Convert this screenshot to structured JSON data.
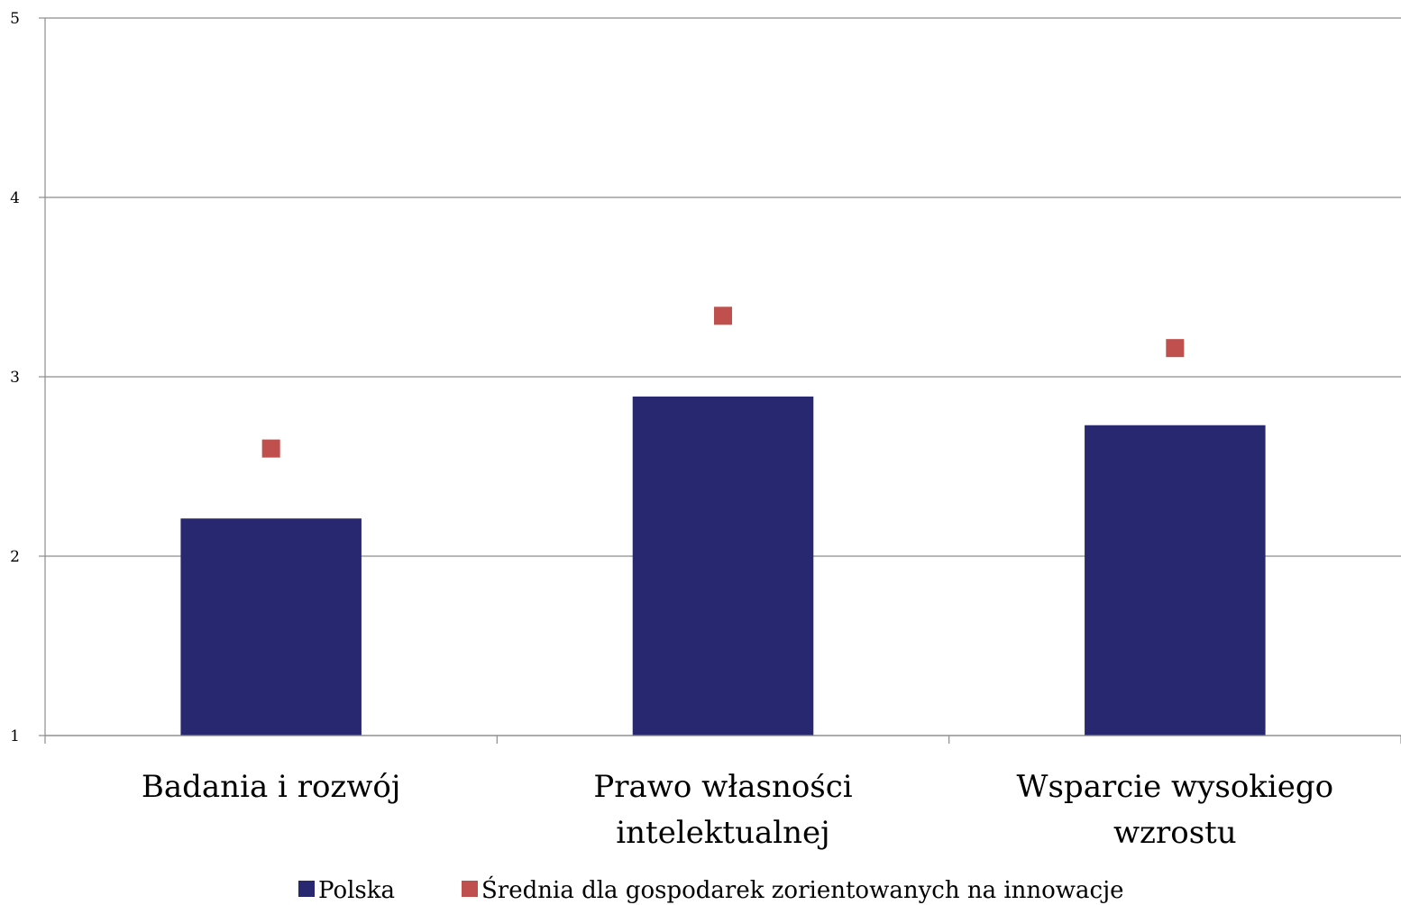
{
  "chart_data": {
    "type": "bar",
    "categories": [
      [
        "Badania i rozwój"
      ],
      [
        "Prawo własności",
        "intelektualnej"
      ],
      [
        "Wsparcie wysokiego",
        "wzrostu"
      ]
    ],
    "series": [
      {
        "name": "Polska",
        "kind": "bar",
        "color": "#282870",
        "values": [
          2.21,
          2.89,
          2.73
        ]
      },
      {
        "name": "Średnia dla gospodarek zorientowanych na innowacje",
        "kind": "marker",
        "color": "#c0504d",
        "values": [
          2.6,
          3.34,
          3.16
        ]
      }
    ],
    "ylim": [
      1,
      5
    ],
    "yticks": [
      "1",
      "2",
      "3",
      "4",
      "5"
    ],
    "grid": true,
    "legend_position": "bottom"
  }
}
